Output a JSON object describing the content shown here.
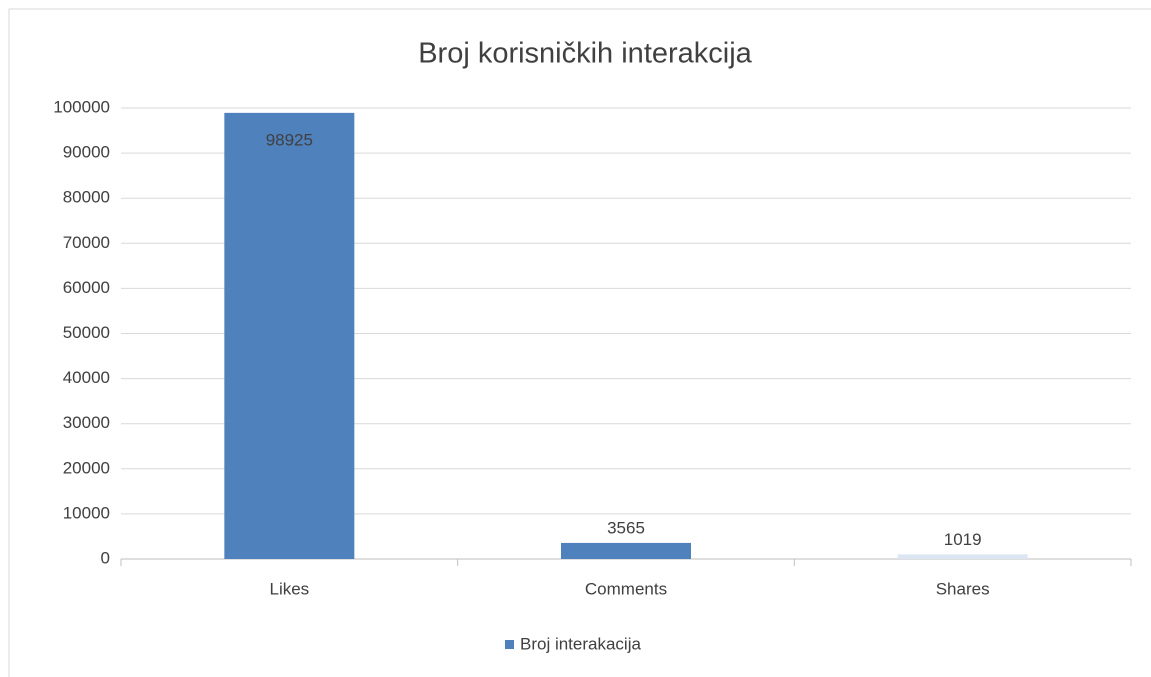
{
  "chart_data": {
    "type": "bar",
    "title": "Broj korisničkih interakcija",
    "categories": [
      "Likes",
      "Comments",
      "Shares"
    ],
    "series": [
      {
        "name": "Broj interakacija",
        "color": "#4f81bd",
        "values": [
          98925,
          3565,
          1019
        ]
      }
    ],
    "point_colors": [
      "#4f81bd",
      "#4f81bd",
      "#dce6f2"
    ],
    "ylim": [
      0,
      100000
    ],
    "yticks": [
      0,
      10000,
      20000,
      30000,
      40000,
      50000,
      60000,
      70000,
      80000,
      90000,
      100000
    ],
    "grid": true,
    "legend": "bottom"
  }
}
